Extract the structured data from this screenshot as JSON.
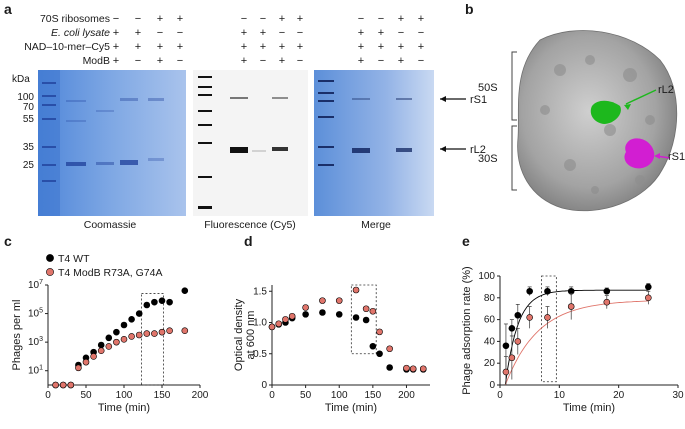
{
  "panel_labels": {
    "a": "a",
    "b": "b",
    "c": "c",
    "d": "d",
    "e": "e"
  },
  "panel_a": {
    "row_labels": [
      "70S ribosomes",
      "E. coli lysate",
      "NAD–10-mer–Cy5",
      "ModB"
    ],
    "kda_label": "kDa",
    "markers": [
      "100",
      "70",
      "55",
      "35",
      "25"
    ],
    "gels": [
      {
        "caption": "Coomassie",
        "signs": [
          [
            "−",
            "−",
            "+",
            "+"
          ],
          [
            "+",
            "+",
            "−",
            "−"
          ],
          [
            "+",
            "+",
            "+",
            "+"
          ],
          [
            "+",
            "−",
            "+",
            "−"
          ]
        ]
      },
      {
        "caption": "Fluorescence (Cy5)",
        "signs": [
          [
            "−",
            "−",
            "+",
            "+"
          ],
          [
            "+",
            "+",
            "−",
            "−"
          ],
          [
            "+",
            "+",
            "+",
            "+"
          ],
          [
            "+",
            "−",
            "+",
            "−"
          ]
        ]
      },
      {
        "caption": "Merge",
        "signs": [
          [
            "−",
            "−",
            "+",
            "+"
          ],
          [
            "+",
            "+",
            "−",
            "−"
          ],
          [
            "+",
            "+",
            "+",
            "+"
          ],
          [
            "+",
            "−",
            "+",
            "−"
          ]
        ]
      }
    ],
    "band_labels": [
      "rS1",
      "rL2"
    ]
  },
  "panel_b": {
    "subunits": [
      "50S",
      "30S"
    ],
    "labels": [
      "rL2",
      "rS1"
    ],
    "colors": {
      "rL2": "#1db81d",
      "rS1": "#d21ed2"
    }
  },
  "chart_data": [
    {
      "type": "scatter",
      "panel": "c",
      "xlabel": "Time (min)",
      "ylabel": "Phages per ml",
      "xlim": [
        0,
        200
      ],
      "xticks": [
        "0",
        "50",
        "100",
        "150",
        "200"
      ],
      "ylim": [
        0,
        7
      ],
      "yscale": "log",
      "yticks": [
        {
          "base": "10",
          "exp": "1",
          "value": 1
        },
        {
          "base": "10",
          "exp": "3",
          "value": 3
        },
        {
          "base": "10",
          "exp": "5",
          "value": 5
        },
        {
          "base": "10",
          "exp": "7",
          "value": 7
        }
      ],
      "legend_position": "top-left",
      "series": [
        {
          "name": "T4 WT",
          "color": "#000000",
          "x": [
            10,
            20,
            30,
            40,
            50,
            60,
            70,
            80,
            90,
            100,
            110,
            120,
            130,
            140,
            150,
            160,
            180
          ],
          "y": [
            0.0,
            0.0,
            0.0,
            1.4,
            1.9,
            2.3,
            2.8,
            3.3,
            3.7,
            4.2,
            4.6,
            5.0,
            5.6,
            5.8,
            5.9,
            5.8,
            6.6
          ]
        },
        {
          "name": "T4 ModB R73A, G74A",
          "color": "#e0756b",
          "x": [
            10,
            20,
            30,
            40,
            50,
            60,
            70,
            80,
            90,
            100,
            110,
            120,
            130,
            140,
            150,
            160,
            180
          ],
          "y": [
            0.0,
            0.0,
            0.0,
            1.2,
            1.6,
            2.0,
            2.4,
            2.7,
            3.0,
            3.2,
            3.4,
            3.5,
            3.6,
            3.6,
            3.7,
            3.8,
            3.8
          ]
        }
      ]
    },
    {
      "type": "scatter",
      "panel": "d",
      "xlabel": "Time (min)",
      "ylabel": "Optical density\nat 600 nm",
      "xlim": [
        0,
        235
      ],
      "xticks": [
        "0",
        "50",
        "100",
        "150",
        "200"
      ],
      "ylim": [
        0,
        1.6
      ],
      "yticks": [
        "0",
        "0.5",
        "1.0",
        "1.5"
      ],
      "series": [
        {
          "name": "T4 WT",
          "color": "#000000",
          "x": [
            0,
            10,
            20,
            30,
            50,
            75,
            100,
            125,
            140,
            150,
            160,
            175,
            200,
            210,
            225
          ],
          "y": [
            0.93,
            0.97,
            1.0,
            1.07,
            1.13,
            1.16,
            1.13,
            1.08,
            1.04,
            0.62,
            0.5,
            0.28,
            0.25,
            0.25,
            0.25
          ]
        },
        {
          "name": "T4 ModB R73A, G74A",
          "color": "#e0756b",
          "x": [
            0,
            10,
            20,
            30,
            50,
            75,
            100,
            125,
            140,
            150,
            160,
            175,
            200,
            210,
            225
          ],
          "y": [
            0.93,
            0.98,
            1.05,
            1.1,
            1.24,
            1.35,
            1.35,
            1.52,
            1.22,
            1.18,
            0.85,
            0.58,
            0.27,
            0.26,
            0.26
          ]
        }
      ]
    },
    {
      "type": "line",
      "panel": "e",
      "xlabel": "Time (min)",
      "ylabel": "Phage adsorption rate (%)",
      "xlim": [
        0,
        30
      ],
      "xticks": [
        "0",
        "10",
        "20",
        "30"
      ],
      "ylim": [
        0,
        100
      ],
      "yticks": [
        "0",
        "20",
        "40",
        "60",
        "80",
        "100"
      ],
      "series": [
        {
          "name": "T4 WT",
          "color": "#000000",
          "x": [
            1,
            2,
            3,
            5,
            8,
            12,
            18,
            25
          ],
          "y": [
            36,
            52,
            64,
            86,
            86,
            86,
            86,
            90
          ],
          "err": [
            20,
            8,
            10,
            4,
            4,
            4,
            3,
            3
          ]
        },
        {
          "name": "T4 ModB R73A, G74A",
          "color": "#e0756b",
          "x": [
            1,
            2,
            3,
            5,
            8,
            12,
            18,
            25
          ],
          "y": [
            12,
            25,
            40,
            62,
            62,
            72,
            76,
            80
          ],
          "err": [
            14,
            20,
            12,
            10,
            10,
            12,
            6,
            6
          ]
        }
      ]
    }
  ]
}
